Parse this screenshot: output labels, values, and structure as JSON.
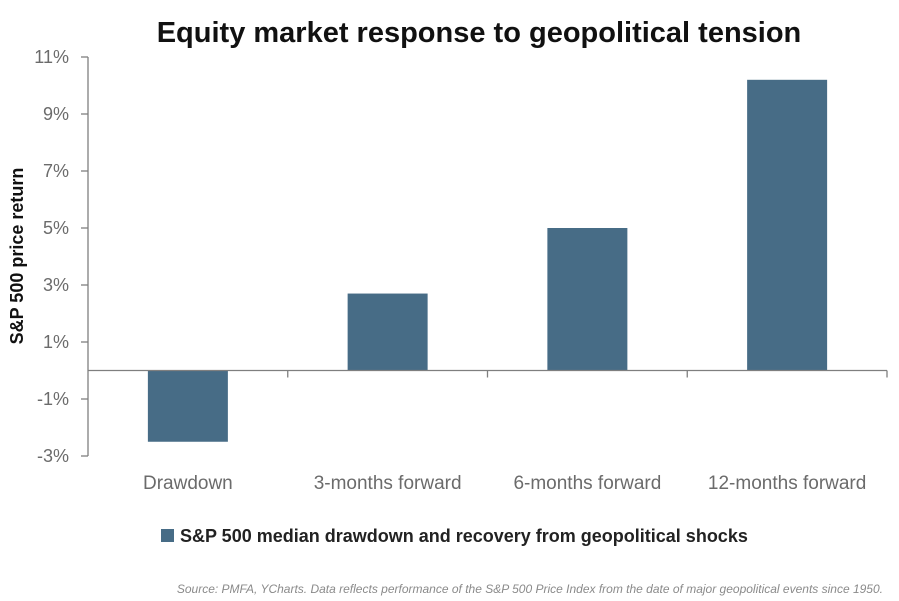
{
  "chart_data": {
    "type": "bar",
    "title": "Equity market response to geopolitical tension",
    "ylabel": "S&P 500 price return",
    "xlabel": "",
    "categories": [
      "Drawdown",
      "3-months forward",
      "6-months forward",
      "12-months forward"
    ],
    "series": [
      {
        "name": "S&P 500 median drawdown and recovery from geopolitical shocks",
        "values": [
          -2.5,
          2.7,
          5.0,
          10.2
        ],
        "color": "#476c86"
      }
    ],
    "yticks": [
      11,
      9,
      7,
      5,
      3,
      1,
      -1,
      -3
    ],
    "ytick_labels": [
      "11%",
      "9%",
      "7%",
      "5%",
      "3%",
      "1%",
      "-1%",
      "-3%"
    ],
    "ylim": [
      -3,
      11
    ],
    "grid": false,
    "legend_position": "bottom"
  },
  "source_note": "Source: PMFA, YCharts. Data reflects performance of the S&P 500 Price Index from the date of major geopolitical events since 1950."
}
